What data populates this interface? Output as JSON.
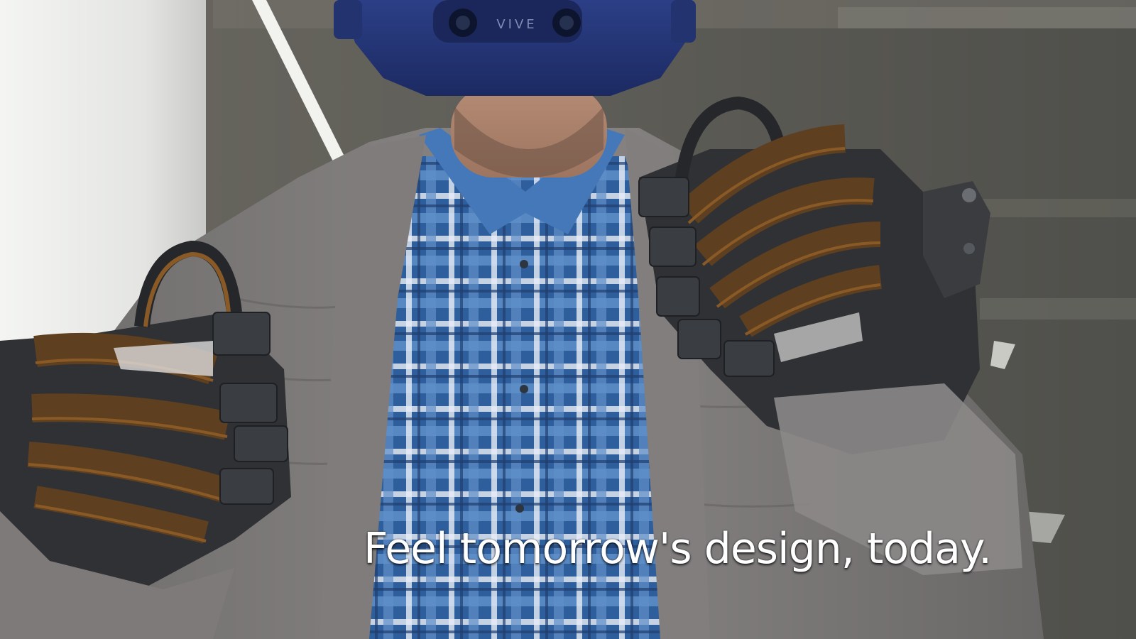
{
  "video": {
    "subtitle": "Feel tomorrow's design, today.",
    "headset_brand": "VIVE"
  },
  "palette": {
    "background": "#5b5a54",
    "column": "#e6e7e5",
    "headset": "#24367a",
    "jacket": "#7d7a79",
    "shirt_blue": "#3b6fb0",
    "glove_dark": "#2d2f33",
    "tendon_amber": "#8a5a26",
    "subtitle_text": "#ffffff"
  }
}
